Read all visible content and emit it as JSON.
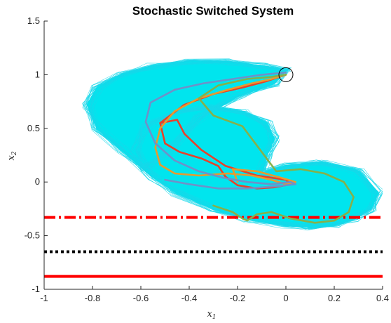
{
  "chart_data": {
    "type": "line",
    "title": "Stochastic Switched System",
    "xlabel": "x",
    "xlabel_subscript": "1",
    "ylabel": "x",
    "ylabel_subscript": "2",
    "xlim": [
      -1,
      0.4
    ],
    "ylim": [
      -1,
      1.5
    ],
    "xticks": [
      -1,
      -0.8,
      -0.6,
      -0.4,
      -0.2,
      0,
      0.2,
      0.4
    ],
    "xtick_labels": [
      "-1",
      "-0.8",
      "-0.6",
      "-0.4",
      "-0.2",
      "0",
      "0.2",
      "0.4"
    ],
    "yticks": [
      -1,
      -0.5,
      0,
      0.5,
      1,
      1.5
    ],
    "ytick_labels": [
      "-1",
      "-0.5",
      "0",
      "0.5",
      "1",
      "1.5"
    ],
    "grid": false,
    "box": "left-bottom",
    "initial_condition": {
      "x": 0.0,
      "y": 1.0
    },
    "cloud_color": "#00e5ee",
    "threshold_lines": [
      {
        "y": -0.33,
        "style": "dash-dot",
        "color": "#ff0000"
      },
      {
        "y": -0.65,
        "style": "dotted",
        "color": "#000000"
      },
      {
        "y": -0.88,
        "style": "solid",
        "color": "#ff0000"
      }
    ],
    "ensemble_envelope": {
      "x": [
        0.0,
        -0.1,
        -0.25,
        -0.4,
        -0.55,
        -0.68,
        -0.78,
        -0.82,
        -0.78,
        -0.68,
        -0.55,
        -0.45,
        -0.3,
        -0.15,
        0.0,
        0.1,
        0.2,
        0.28,
        0.35,
        0.38,
        0.3,
        0.15,
        0.0,
        -0.1,
        -0.08,
        -0.05,
        -0.08,
        -0.18,
        -0.32,
        -0.46,
        -0.58,
        -0.62,
        -0.58,
        -0.48,
        -0.36,
        -0.2,
        -0.05,
        0.0
      ],
      "y": [
        1.04,
        1.08,
        1.12,
        1.12,
        1.08,
        1.0,
        0.88,
        0.72,
        0.5,
        0.3,
        0.05,
        -0.1,
        -0.25,
        -0.35,
        -0.4,
        -0.42,
        -0.4,
        -0.34,
        -0.25,
        -0.1,
        0.1,
        0.18,
        0.15,
        0.08,
        0.25,
        0.4,
        0.55,
        0.65,
        0.7,
        0.65,
        0.52,
        0.3,
        0.12,
        0.3,
        0.6,
        0.8,
        0.92,
        1.04
      ]
    },
    "series": [
      {
        "color": "#e8412a",
        "x": [
          0.0,
          -0.08,
          -0.18,
          -0.3,
          -0.42,
          -0.52,
          -0.5,
          -0.44,
          -0.35,
          -0.28,
          -0.25,
          -0.2,
          -0.12,
          -0.05,
          0.02,
          0.0,
          -0.12,
          -0.25,
          -0.35,
          -0.42,
          -0.45,
          -0.52
        ],
        "y": [
          1.0,
          0.94,
          0.88,
          0.82,
          0.72,
          0.55,
          0.36,
          0.28,
          0.22,
          0.15,
          0.05,
          -0.03,
          -0.06,
          -0.05,
          -0.02,
          0.02,
          0.06,
          0.15,
          0.3,
          0.45,
          0.58,
          0.55
        ]
      },
      {
        "color": "#e89a2e",
        "x": [
          0.0,
          -0.06,
          -0.14,
          -0.24,
          -0.36,
          -0.46,
          -0.52,
          -0.54,
          -0.52,
          -0.46,
          -0.36,
          -0.24,
          -0.14,
          -0.06,
          0.0,
          0.04,
          -0.02,
          -0.12,
          -0.22,
          -0.2
        ],
        "y": [
          1.0,
          0.96,
          0.92,
          0.86,
          0.78,
          0.66,
          0.5,
          0.32,
          0.16,
          0.08,
          0.06,
          0.08,
          0.06,
          0.02,
          -0.02,
          0.0,
          0.04,
          0.1,
          0.12,
          0.0
        ]
      },
      {
        "color": "#6f91c8",
        "x": [
          0.0,
          -0.1,
          -0.22,
          -0.34,
          -0.46,
          -0.56,
          -0.58,
          -0.54,
          -0.46,
          -0.36,
          -0.26,
          -0.16,
          -0.06,
          0.02,
          0.04,
          -0.04,
          -0.16,
          -0.28,
          -0.4,
          -0.5
        ],
        "y": [
          1.02,
          1.0,
          0.96,
          0.92,
          0.86,
          0.74,
          0.56,
          0.36,
          0.2,
          0.1,
          0.04,
          0.0,
          -0.02,
          0.0,
          -0.02,
          -0.04,
          -0.06,
          -0.06,
          -0.02,
          0.02
        ]
      },
      {
        "color": "#86b04a",
        "x": [
          0.0,
          -0.06,
          -0.16,
          -0.28,
          -0.36,
          -0.3,
          -0.18,
          -0.04,
          0.06,
          0.16,
          0.24,
          0.28,
          0.26,
          0.2,
          0.12,
          0.02,
          -0.06,
          -0.12,
          -0.16,
          -0.18,
          -0.22,
          -0.3
        ],
        "y": [
          1.0,
          0.98,
          0.96,
          0.9,
          0.78,
          0.62,
          0.52,
          0.1,
          0.12,
          0.08,
          0.0,
          -0.14,
          -0.28,
          -0.36,
          -0.38,
          -0.34,
          -0.28,
          -0.3,
          -0.36,
          -0.34,
          -0.28,
          -0.22
        ]
      }
    ]
  }
}
